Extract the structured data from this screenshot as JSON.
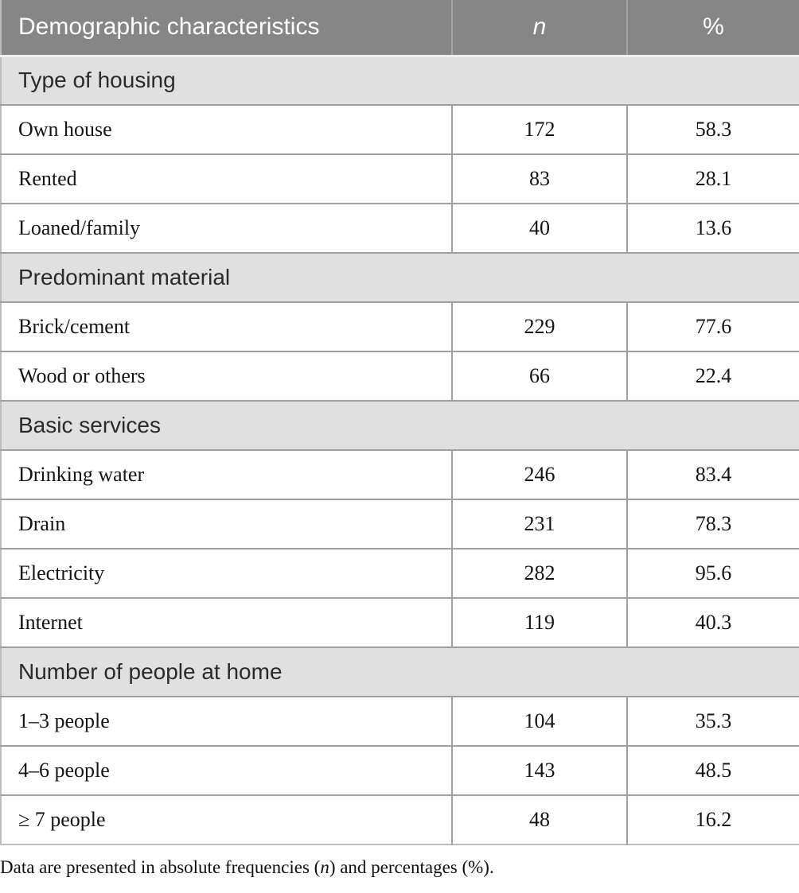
{
  "table": {
    "header": {
      "characteristic": "Demographic characteristics",
      "n": "n",
      "percent": "%"
    },
    "sections": [
      {
        "title": "Type of housing",
        "rows": [
          {
            "label": "Own house",
            "n": "172",
            "percent": "58.3"
          },
          {
            "label": "Rented",
            "n": "83",
            "percent": "28.1"
          },
          {
            "label": "Loaned/family",
            "n": "40",
            "percent": "13.6"
          }
        ]
      },
      {
        "title": "Predominant material",
        "rows": [
          {
            "label": "Brick/cement",
            "n": "229",
            "percent": "77.6"
          },
          {
            "label": "Wood or others",
            "n": "66",
            "percent": "22.4"
          }
        ]
      },
      {
        "title": "Basic services",
        "rows": [
          {
            "label": "Drinking water",
            "n": "246",
            "percent": "83.4"
          },
          {
            "label": "Drain",
            "n": "231",
            "percent": "78.3"
          },
          {
            "label": "Electricity",
            "n": "282",
            "percent": "95.6"
          },
          {
            "label": "Internet",
            "n": "119",
            "percent": "40.3"
          }
        ]
      },
      {
        "title": "Number of people at home",
        "rows": [
          {
            "label": "1–3 people",
            "n": "104",
            "percent": "35.3"
          },
          {
            "label": "4–6 people",
            "n": "143",
            "percent": "48.5"
          },
          {
            "label": "≥ 7 people",
            "n": "48",
            "percent": "16.2"
          }
        ]
      }
    ]
  },
  "footnote": {
    "part1": "Data are presented in absolute frequencies (",
    "n_symbol": "n",
    "part2": ") and percentages (%)."
  },
  "colors": {
    "header_bg": "#868686",
    "section_bg": "#e0e0e0",
    "row_border": "#9f9f9f",
    "header_text": "#ffffff",
    "section_text": "#2a2a2a",
    "body_text": "#141414"
  }
}
